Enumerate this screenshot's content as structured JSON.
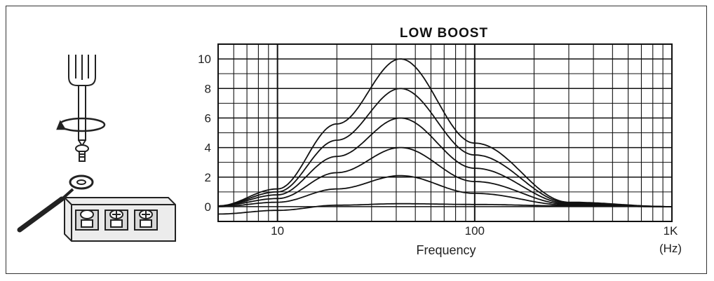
{
  "chart_data": {
    "type": "line",
    "title": "LOW BOOST",
    "xlabel": "Frequency",
    "xunit": "(Hz)",
    "xscale": "log",
    "xlim": [
      5,
      1000
    ],
    "ylim": [
      -1,
      11
    ],
    "x_ticks": [
      "10",
      "100",
      "1K"
    ],
    "y_ticks": [
      "10",
      "8",
      "6",
      "4",
      "2",
      "0"
    ],
    "grid": true,
    "center_frequency": 42,
    "series": [
      {
        "peak": 10,
        "values_at": {
          "5": 0.05,
          "10": 1.2,
          "20": 5.6,
          "42": 10,
          "100": 4.3,
          "300": 0.3,
          "1000": 0
        }
      },
      {
        "peak": 8,
        "values_at": {
          "5": 0.05,
          "10": 1.0,
          "20": 4.5,
          "42": 8,
          "100": 3.5,
          "300": 0.25,
          "1000": 0
        }
      },
      {
        "peak": 6,
        "values_at": {
          "5": 0.05,
          "10": 0.8,
          "20": 3.4,
          "42": 6,
          "100": 2.6,
          "300": 0.2,
          "1000": 0
        }
      },
      {
        "peak": 4,
        "values_at": {
          "5": 0.05,
          "10": 0.55,
          "20": 2.3,
          "42": 4,
          "100": 1.7,
          "300": 0.15,
          "1000": 0
        }
      },
      {
        "peak": 2,
        "values_at": {
          "5": 0,
          "10": 0.3,
          "20": 1.2,
          "42": 2.1,
          "100": 0.9,
          "300": 0.1,
          "1000": 0
        }
      },
      {
        "peak": 0,
        "values_at": {
          "5": -0.5,
          "10": -0.25,
          "20": 0.1,
          "42": 0.2,
          "100": 0.15,
          "300": 0.05,
          "1000": 0
        }
      }
    ]
  },
  "illustration": {
    "icons": [
      "screwdriver-icon",
      "rotate-arrow-icon",
      "screw-icon",
      "ring-terminal-icon",
      "terminal-block-icon"
    ]
  }
}
